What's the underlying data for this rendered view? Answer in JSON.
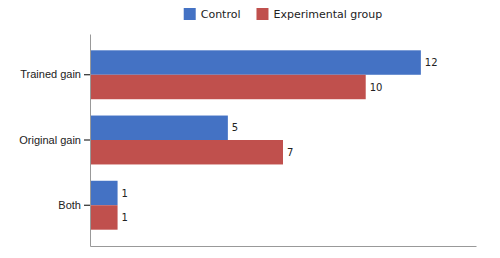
{
  "chart_data": {
    "type": "bar",
    "orientation": "horizontal",
    "categories": [
      "Trained gain",
      "Original gain",
      "Both"
    ],
    "series": [
      {
        "name": "Control",
        "color": "#4472C4",
        "values": [
          12,
          5,
          1
        ]
      },
      {
        "name": "Experimental group",
        "color": "#C0504D",
        "values": [
          10,
          7,
          1
        ]
      }
    ],
    "xlim": [
      0,
      14.0
    ],
    "data_labels": true,
    "tick_labels": "y",
    "legend": "top",
    "grid": false
  }
}
